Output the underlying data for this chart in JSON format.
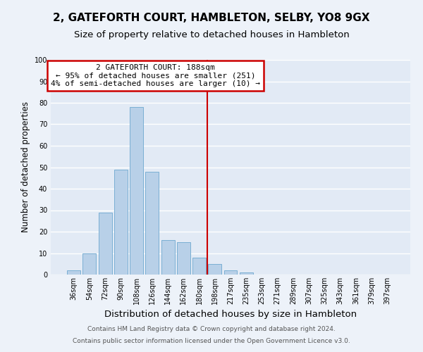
{
  "title": "2, GATEFORTH COURT, HAMBLETON, SELBY, YO8 9GX",
  "subtitle": "Size of property relative to detached houses in Hambleton",
  "xlabel": "Distribution of detached houses by size in Hambleton",
  "ylabel": "Number of detached properties",
  "bar_labels": [
    "36sqm",
    "54sqm",
    "72sqm",
    "90sqm",
    "108sqm",
    "126sqm",
    "144sqm",
    "162sqm",
    "180sqm",
    "198sqm",
    "217sqm",
    "235sqm",
    "253sqm",
    "271sqm",
    "289sqm",
    "307sqm",
    "325sqm",
    "343sqm",
    "361sqm",
    "379sqm",
    "397sqm"
  ],
  "bar_values": [
    2,
    10,
    29,
    49,
    78,
    48,
    16,
    15,
    8,
    5,
    2,
    1,
    0,
    0,
    0,
    0,
    0,
    0,
    0,
    0,
    0
  ],
  "bar_color": "#b8d0e8",
  "bar_edge_color": "#7aafd4",
  "vline_x": 8.5,
  "vline_color": "#cc0000",
  "ylim": [
    0,
    100
  ],
  "yticks": [
    0,
    10,
    20,
    30,
    40,
    50,
    60,
    70,
    80,
    90,
    100
  ],
  "annotation_title": "2 GATEFORTH COURT: 188sqm",
  "annotation_line1": "← 95% of detached houses are smaller (251)",
  "annotation_line2": "4% of semi-detached houses are larger (10) →",
  "annotation_box_color": "#cc0000",
  "footer_line1": "Contains HM Land Registry data © Crown copyright and database right 2024.",
  "footer_line2": "Contains public sector information licensed under the Open Government Licence v3.0.",
  "background_color": "#edf2f9",
  "plot_bg_color": "#e2eaf5",
  "grid_color": "#ffffff",
  "title_fontsize": 11,
  "subtitle_fontsize": 9.5,
  "tick_fontsize": 7,
  "xlabel_fontsize": 9.5,
  "ylabel_fontsize": 8.5,
  "footer_fontsize": 6.5,
  "annotation_fontsize": 8
}
